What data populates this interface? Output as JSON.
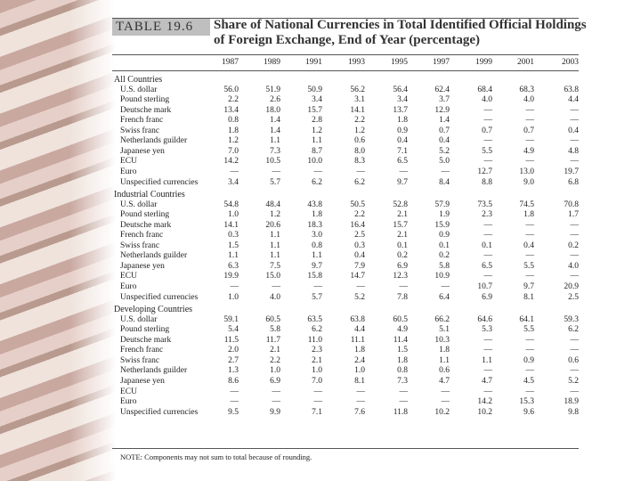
{
  "header": {
    "label": "TABLE 19.6",
    "title_lines": [
      "Share of National Currencies in Total Identified Official Holdings",
      "of Foreign Exchange, End of Year (percentage)"
    ]
  },
  "table": {
    "columns": [
      "1987",
      "1989",
      "1991",
      "1993",
      "1995",
      "1997",
      "1999",
      "2001",
      "2003"
    ],
    "sections": [
      {
        "title": "All Countries",
        "rows": [
          {
            "label": "U.S. dollar",
            "values": [
              "56.0",
              "51.9",
              "50.9",
              "56.2",
              "56.4",
              "62.4",
              "68.4",
              "68.3",
              "63.8"
            ]
          },
          {
            "label": "Pound sterling",
            "values": [
              "2.2",
              "2.6",
              "3.4",
              "3.1",
              "3.4",
              "3.7",
              "4.0",
              "4.0",
              "4.4"
            ]
          },
          {
            "label": "Deutsche mark",
            "values": [
              "13.4",
              "18.0",
              "15.7",
              "14.1",
              "13.7",
              "12.9",
              "—",
              "—",
              "—"
            ]
          },
          {
            "label": "French franc",
            "values": [
              "0.8",
              "1.4",
              "2.8",
              "2.2",
              "1.8",
              "1.4",
              "—",
              "—",
              "—"
            ]
          },
          {
            "label": "Swiss franc",
            "values": [
              "1.8",
              "1.4",
              "1.2",
              "1.2",
              "0.9",
              "0.7",
              "0.7",
              "0.7",
              "0.4"
            ]
          },
          {
            "label": "Netherlands guilder",
            "values": [
              "1.2",
              "1.1",
              "1.1",
              "0.6",
              "0.4",
              "0.4",
              "—",
              "—",
              "—"
            ]
          },
          {
            "label": "Japanese yen",
            "values": [
              "7.0",
              "7.3",
              "8.7",
              "8.0",
              "7.1",
              "5.2",
              "5.5",
              "4.9",
              "4.8"
            ]
          },
          {
            "label": "ECU",
            "values": [
              "14.2",
              "10.5",
              "10.0",
              "8.3",
              "6.5",
              "5.0",
              "—",
              "—",
              "—"
            ]
          },
          {
            "label": "Euro",
            "values": [
              "—",
              "—",
              "—",
              "—",
              "—",
              "—",
              "12.7",
              "13.0",
              "19.7"
            ]
          },
          {
            "label": "Unspecified currencies",
            "values": [
              "3.4",
              "5.7",
              "6.2",
              "6.2",
              "9.7",
              "8.4",
              "8.8",
              "9.0",
              "6.8"
            ]
          }
        ]
      },
      {
        "title": "Industrial Countries",
        "rows": [
          {
            "label": "U.S. dollar",
            "values": [
              "54.8",
              "48.4",
              "43.8",
              "50.5",
              "52.8",
              "57.9",
              "73.5",
              "74.5",
              "70.8"
            ]
          },
          {
            "label": "Pound sterling",
            "values": [
              "1.0",
              "1.2",
              "1.8",
              "2.2",
              "2.1",
              "1.9",
              "2.3",
              "1.8",
              "1.7"
            ]
          },
          {
            "label": "Deutsche mark",
            "values": [
              "14.1",
              "20.6",
              "18.3",
              "16.4",
              "15.7",
              "15.9",
              "—",
              "—",
              "—"
            ]
          },
          {
            "label": "French franc",
            "values": [
              "0.3",
              "1.1",
              "3.0",
              "2.5",
              "2.1",
              "0.9",
              "—",
              "—",
              "—"
            ]
          },
          {
            "label": "Swiss franc",
            "values": [
              "1.5",
              "1.1",
              "0.8",
              "0.3",
              "0.1",
              "0.1",
              "0.1",
              "0.4",
              "0.2"
            ]
          },
          {
            "label": "Netherlands guilder",
            "values": [
              "1.1",
              "1.1",
              "1.1",
              "0.4",
              "0.2",
              "0.2",
              "—",
              "—",
              "—"
            ]
          },
          {
            "label": "Japanese yen",
            "values": [
              "6.3",
              "7.5",
              "9.7",
              "7.9",
              "6.9",
              "5.8",
              "6.5",
              "5.5",
              "4.0"
            ]
          },
          {
            "label": "ECU",
            "values": [
              "19.9",
              "15.0",
              "15.8",
              "14.7",
              "12.3",
              "10.9",
              "—",
              "—",
              "—"
            ]
          },
          {
            "label": "Euro",
            "values": [
              "—",
              "—",
              "—",
              "—",
              "—",
              "—",
              "10.7",
              "9.7",
              "20.9"
            ]
          },
          {
            "label": "Unspecified currencies",
            "values": [
              "1.0",
              "4.0",
              "5.7",
              "5.2",
              "7.8",
              "6.4",
              "6.9",
              "8.1",
              "2.5"
            ]
          }
        ]
      },
      {
        "title": "Developing Countries",
        "rows": [
          {
            "label": "U.S. dollar",
            "values": [
              "59.1",
              "60.5",
              "63.5",
              "63.8",
              "60.5",
              "66.2",
              "64.6",
              "64.1",
              "59.3"
            ]
          },
          {
            "label": "Pound sterling",
            "values": [
              "5.4",
              "5.8",
              "6.2",
              "4.4",
              "4.9",
              "5.1",
              "5.3",
              "5.5",
              "6.2"
            ]
          },
          {
            "label": "Deutsche mark",
            "values": [
              "11.5",
              "11.7",
              "11.0",
              "11.1",
              "11.4",
              "10.3",
              "—",
              "—",
              "—"
            ]
          },
          {
            "label": "French franc",
            "values": [
              "2.0",
              "2.1",
              "2.3",
              "1.8",
              "1.5",
              "1.8",
              "—",
              "—",
              "—"
            ]
          },
          {
            "label": "Swiss franc",
            "values": [
              "2.7",
              "2.2",
              "2.1",
              "2.4",
              "1.8",
              "1.1",
              "1.1",
              "0.9",
              "0.6"
            ]
          },
          {
            "label": "Netherlands guilder",
            "values": [
              "1.3",
              "1.0",
              "1.0",
              "1.0",
              "0.8",
              "0.6",
              "—",
              "—",
              "—"
            ]
          },
          {
            "label": "Japanese yen",
            "values": [
              "8.6",
              "6.9",
              "7.0",
              "8.1",
              "7.3",
              "4.7",
              "4.7",
              "4.5",
              "5.2"
            ]
          },
          {
            "label": "ECU",
            "values": [
              "—",
              "—",
              "—",
              "—",
              "—",
              "—",
              "—",
              "—",
              "—"
            ]
          },
          {
            "label": "Euro",
            "values": [
              "—",
              "—",
              "—",
              "—",
              "—",
              "—",
              "14.2",
              "15.3",
              "18.9"
            ]
          },
          {
            "label": "Unspecified currencies",
            "values": [
              "9.5",
              "9.9",
              "7.1",
              "7.6",
              "11.8",
              "10.2",
              "10.2",
              "9.6",
              "9.8"
            ]
          }
        ]
      }
    ]
  },
  "note": "NOTE: Components may not sum to total because of rounding."
}
